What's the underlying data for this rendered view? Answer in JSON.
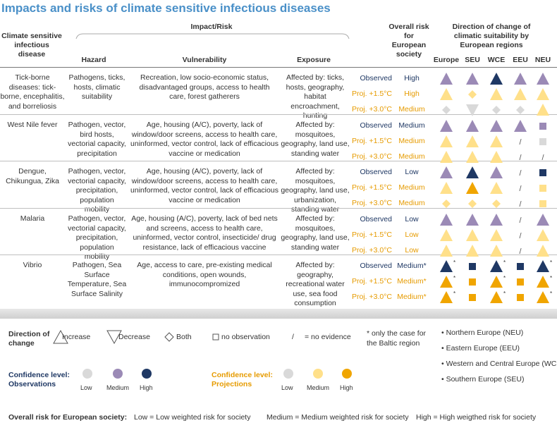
{
  "title": "Impacts and risks of climate sensitive infectious diseases",
  "headers": {
    "disease": "Climate sensitive infectious disease",
    "impact_risk": "Impact/Risk",
    "hazard": "Hazard",
    "vulnerability": "Vulnerability",
    "exposure": "Exposure",
    "overall": "Overall risk for European society",
    "direction": "Direction of change of climatic suitability by European regions",
    "regions": [
      "Europe",
      "SEU",
      "WCE",
      "EEU",
      "NEU"
    ]
  },
  "row_labels": {
    "observed": "Observed",
    "proj15": "Proj. +1.5°C",
    "proj30": "Proj. +3.0°C"
  },
  "colors": {
    "obs_low": "#d9d9d9",
    "obs_medium": "#9b8ab6",
    "obs_high": "#1f3864",
    "proj_low": "#d9d9d9",
    "proj_medium": "#ffe08a",
    "proj_high": "#f0a500",
    "title": "#4a90c8"
  },
  "diseases": [
    {
      "name": "Tick-borne diseases: tick-borne, encephalitis, and borreliosis",
      "hazard": "Pathogens, ticks, hosts, climatic suitability",
      "vulnerability": "Recreation, low socio-economic status, disadvantaged groups, access to health care, forest gatherers",
      "exposure": "Affected by: ticks, hosts, geography, habitat encroachment, hunting",
      "risk": [
        "High",
        "High",
        "Medium"
      ],
      "icons": [
        [
          "tri-up:obs_medium",
          "tri-up:obs_medium",
          "tri-up:obs_high",
          "tri-up:obs_medium",
          "tri-up:obs_medium"
        ],
        [
          "tri-up:proj_medium",
          "diamond:proj_medium",
          "tri-up:proj_medium",
          "tri-up:proj_medium",
          "tri-up:proj_medium"
        ],
        [
          "diamond:proj_low",
          "tri-down:proj_low",
          "diamond:proj_low",
          "diamond:proj_low",
          "tri-up:proj_medium"
        ]
      ]
    },
    {
      "name": "West Nile fever",
      "hazard": "Pathogen, vector, bird hosts, vectorial capacity, precipitation",
      "vulnerability": "Age, housing (A/C), poverty, lack of window/door screens, access to health care, uninformed, vector control, lack of efficacious vaccine or medication",
      "exposure": "Affected by: mosquitoes, geography, land use, standing water",
      "risk": [
        "Medium",
        "Medium",
        "Medium"
      ],
      "icons": [
        [
          "tri-up:obs_medium",
          "tri-up:obs_medium",
          "tri-up:obs_medium",
          "tri-up:obs_medium",
          "square:obs_medium"
        ],
        [
          "tri-up:proj_medium",
          "tri-up:proj_medium",
          "tri-up:proj_medium",
          "slash",
          "square:proj_low"
        ],
        [
          "tri-up:proj_medium",
          "tri-up:proj_medium",
          "tri-up:proj_medium",
          "slash",
          "slash"
        ]
      ]
    },
    {
      "name": "Dengue, Chikungua, Zika",
      "hazard": "Pathogen, vector, vectorial capacity, precipitation, population mobility",
      "vulnerability": "Age, housing (A/C), poverty, lack of window/door screens, access to health care, uninformed, vector control, lack of efficacious vaccine or medication",
      "exposure": "Affected by: mosquitoes, geography, land use, urbanization, standing water",
      "risk": [
        "Low",
        "Medium",
        "Medium"
      ],
      "icons": [
        [
          "tri-up:obs_medium",
          "tri-up:obs_high",
          "tri-up:obs_medium",
          "slash",
          "square:obs_high"
        ],
        [
          "tri-up:proj_medium",
          "tri-up:proj_high",
          "tri-up:proj_medium",
          "slash",
          "square:proj_medium"
        ],
        [
          "diamond:proj_medium",
          "diamond:proj_medium",
          "diamond:proj_medium",
          "slash",
          "square:proj_medium"
        ]
      ]
    },
    {
      "name": "Malaria",
      "hazard": "Pathogen, vector, vectorial capacity, precipitation, population mobility",
      "vulnerability": "Age, housing (A/C), poverty, lack of bed nets and screens, access to health care, uninformed, vector control, insecticide/ drug resistance, lack of efficacious vaccine",
      "exposure": "Affected by: mosquitoes, geography, land use, standing water",
      "risk": [
        "Low",
        "Low",
        "Low"
      ],
      "icons": [
        [
          "tri-up:obs_medium",
          "tri-up:obs_medium",
          "tri-up:obs_medium",
          "slash",
          "tri-up:obs_medium"
        ],
        [
          "tri-up:proj_medium",
          "tri-up:proj_medium",
          "tri-up:proj_medium",
          "slash",
          "tri-up:proj_medium"
        ],
        [
          "tri-up:proj_medium",
          "tri-up:proj_medium",
          "tri-up:proj_medium",
          "slash",
          "tri-up:proj_medium"
        ]
      ]
    },
    {
      "name": "Vibrio",
      "hazard": "Pathogen, Sea Surface Temperature, Sea Surface Salinity",
      "vulnerability": "Age, access to care, pre-existing medical conditions, open wounds, immunocompromized",
      "exposure": "Affected by: geography, recreational water use, sea food consumption",
      "risk": [
        "Medium*",
        "Medium*",
        "Medium*"
      ],
      "icons": [
        [
          "tri-up:obs_high:*",
          "square:obs_high",
          "tri-up:obs_high:*",
          "square:obs_high",
          "tri-up:obs_high:*"
        ],
        [
          "tri-up:proj_high:*",
          "square:proj_high",
          "tri-up:proj_high:*",
          "square:proj_high",
          "tri-up:proj_high:*"
        ],
        [
          "tri-up:proj_high:*",
          "square:proj_high",
          "tri-up:proj_high:*",
          "square:proj_high",
          "tri-up:proj_high:*"
        ]
      ]
    }
  ],
  "legend": {
    "direction_title": "Direction of change",
    "increase": "Increase",
    "decrease": "Decrease",
    "both": "Both",
    "no_observation": "no observation",
    "slash_symbol": "/",
    "no_evidence": "= no evidence",
    "baltic_note": "* only the case for the Baltic region",
    "regions": [
      "• Northern Europe (NEU)",
      "• Eastern Europe (EEU)",
      "• Western and Central Europe (WCE)",
      "• Southern Europe (SEU)"
    ],
    "conf_obs_title": "Confidence level: Observations",
    "conf_proj_title": "Confidence level: Projections",
    "low": "Low",
    "medium": "Medium",
    "high": "High",
    "overall_title": "Overall risk for European society:",
    "low_def": "Low = Low weighted risk for society",
    "medium_def": "Medium = Medium weighted risk for society",
    "high_def": "High = High weigthed risk for society"
  }
}
